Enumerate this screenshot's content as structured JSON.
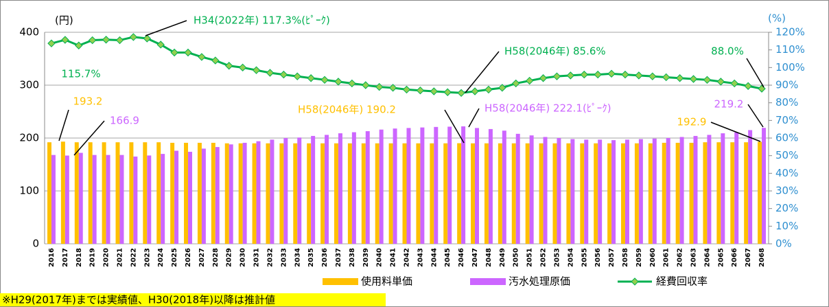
{
  "chart_data": {
    "type": "bar",
    "y_label": "(円)",
    "y2_label": "(%)",
    "categories": [
      "2016",
      "2017",
      "2018",
      "2019",
      "2020",
      "2021",
      "2022",
      "2023",
      "2024",
      "2025",
      "2026",
      "2027",
      "2028",
      "2029",
      "2030",
      "2031",
      "2032",
      "2033",
      "2034",
      "2035",
      "2036",
      "2037",
      "2038",
      "2039",
      "2040",
      "2041",
      "2042",
      "2043",
      "2044",
      "2045",
      "2046",
      "2047",
      "2048",
      "2049",
      "2050",
      "2051",
      "2052",
      "2053",
      "2054",
      "2055",
      "2056",
      "2057",
      "2058",
      "2059",
      "2060",
      "2061",
      "2062",
      "2063",
      "2064",
      "2065",
      "2066",
      "2067",
      "2068"
    ],
    "series": [
      {
        "name": "使用料単価",
        "color": "#ffc000",
        "values": [
          192,
          193.2,
          192,
          192,
          192,
          192,
          192,
          192,
          192,
          191,
          191,
          191,
          191,
          190,
          190,
          190,
          190,
          190,
          190,
          190,
          190,
          190,
          190,
          190,
          190,
          190,
          190,
          190,
          190,
          190,
          190.2,
          190,
          190,
          190,
          190,
          190,
          190,
          190,
          190,
          190,
          190,
          190,
          190,
          190,
          190,
          191,
          191,
          191,
          192,
          192,
          192,
          192,
          192.9
        ]
      },
      {
        "name": "汚水処理原価",
        "color": "#cc66ff",
        "values": [
          168,
          166.9,
          172,
          168,
          168,
          168,
          165,
          167,
          170,
          176,
          174,
          180,
          183,
          188,
          191,
          194,
          197,
          200,
          201,
          204,
          206,
          209,
          211,
          213,
          216,
          218,
          219,
          220,
          221,
          221.5,
          222.1,
          219,
          217,
          214,
          208,
          205,
          202,
          200,
          198,
          197,
          197,
          196,
          197,
          198,
          199,
          200,
          202,
          204,
          206,
          209,
          211,
          215,
          219.2
        ]
      },
      {
        "name": "経費回収率",
        "type": "line",
        "axis": "y2",
        "color": "#00b050",
        "marker_color": "#92d050",
        "values": [
          113.7,
          115.7,
          112.5,
          115.5,
          115.8,
          115.5,
          117.3,
          116.5,
          113,
          108.5,
          108.5,
          106,
          104,
          101,
          100,
          98.5,
          97,
          96,
          95,
          94,
          93,
          92,
          91,
          90,
          89,
          88.5,
          87.5,
          87,
          86.5,
          86,
          85.6,
          86.5,
          87.5,
          88.5,
          91,
          92.5,
          94,
          95,
          95.5,
          96,
          96,
          96.5,
          96,
          95.5,
          95,
          94.5,
          94,
          93.5,
          93,
          92,
          91,
          89.5,
          88.0
        ]
      }
    ],
    "ylim": [
      0,
      400
    ],
    "yticks": [
      0,
      100,
      200,
      300,
      400
    ],
    "y2lim": [
      0,
      120
    ],
    "y2ticks": [
      {
        "value": 0,
        "label": "0%"
      },
      {
        "value": 10,
        "label": "10%"
      },
      {
        "value": 20,
        "label": "20%"
      },
      {
        "value": 30,
        "label": "30%"
      },
      {
        "value": 40,
        "label": "40%"
      },
      {
        "value": 50,
        "label": "50%"
      },
      {
        "value": 60,
        "label": "60%"
      },
      {
        "value": 70,
        "label": "70%"
      },
      {
        "value": 80,
        "label": "80%"
      },
      {
        "value": 90,
        "label": "90%"
      },
      {
        "value": 100,
        "label": "100%"
      },
      {
        "value": 110,
        "label": "110%"
      },
      {
        "value": 120,
        "label": "120%"
      }
    ],
    "grid": true,
    "legend": "bottom",
    "annotations": [
      "H34(2022年) 117.3%(ﾋﾟｰｸ)",
      "115.7%",
      "H58(2046年) 85.6%",
      "88.0%",
      "193.2",
      "166.9",
      "H58(2046年) 190.2",
      "H58(2046年) 222.1(ﾋﾟｰｸ)",
      "219.2",
      "192.9"
    ],
    "note": "※H29(2017年)までは実績値、H30(2018年)以降は推計値"
  }
}
